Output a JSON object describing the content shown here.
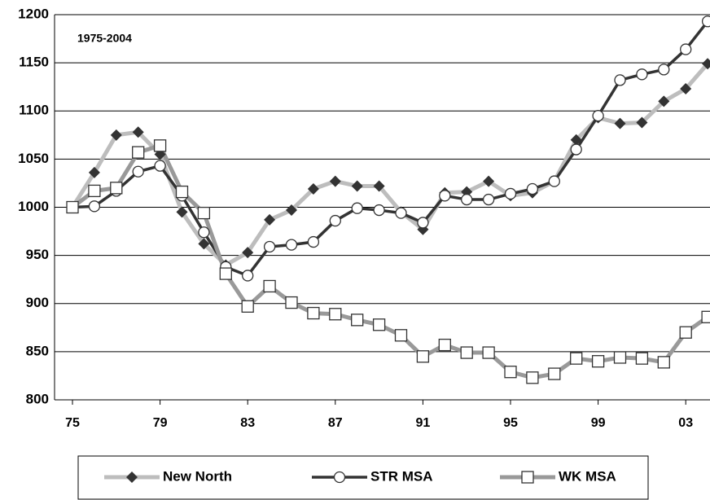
{
  "chart_data": {
    "type": "line",
    "annotation": "1975-2004",
    "categories": [
      "75",
      null,
      null,
      null,
      "79",
      null,
      null,
      null,
      "83",
      null,
      null,
      null,
      "87",
      null,
      null,
      null,
      "91",
      null,
      null,
      null,
      "95",
      null,
      null,
      null,
      "99",
      null,
      null,
      null,
      "03",
      null
    ],
    "series": [
      {
        "name": "New North",
        "color": "#bdbdbd",
        "marker": "diamond",
        "marker_color": "#333333",
        "values": [
          1000,
          1036,
          1075,
          1078,
          1055,
          995,
          962,
          940,
          953,
          987,
          997,
          1019,
          1027,
          1022,
          1022,
          995,
          977,
          1015,
          1016,
          1027,
          1012,
          1015,
          1027,
          1070,
          1093,
          1087,
          1088,
          1110,
          1123,
          1149
        ]
      },
      {
        "name": "STR MSA",
        "color": "#333333",
        "marker": "circle",
        "marker_color": "#333333",
        "values": [
          1000,
          1001,
          1017,
          1037,
          1043,
          1012,
          974,
          938,
          929,
          959,
          961,
          964,
          986,
          999,
          997,
          994,
          984,
          1012,
          1008,
          1008,
          1014,
          1019,
          1027,
          1060,
          1095,
          1132,
          1138,
          1143,
          1164,
          1193
        ]
      },
      {
        "name": "WK MSA",
        "color": "#999999",
        "marker": "square",
        "marker_color": "#333333",
        "values": [
          1000,
          1017,
          1020,
          1057,
          1064,
          1016,
          994,
          931,
          897,
          918,
          901,
          890,
          889,
          883,
          878,
          867,
          845,
          857,
          849,
          849,
          829,
          823,
          827,
          843,
          840,
          844,
          843,
          839,
          870,
          886
        ]
      }
    ],
    "ylim": [
      800,
      1200
    ],
    "yticks": [
      800,
      850,
      900,
      950,
      1000,
      1050,
      1100,
      1150,
      1200
    ],
    "grid": true,
    "legend": "bottom"
  }
}
